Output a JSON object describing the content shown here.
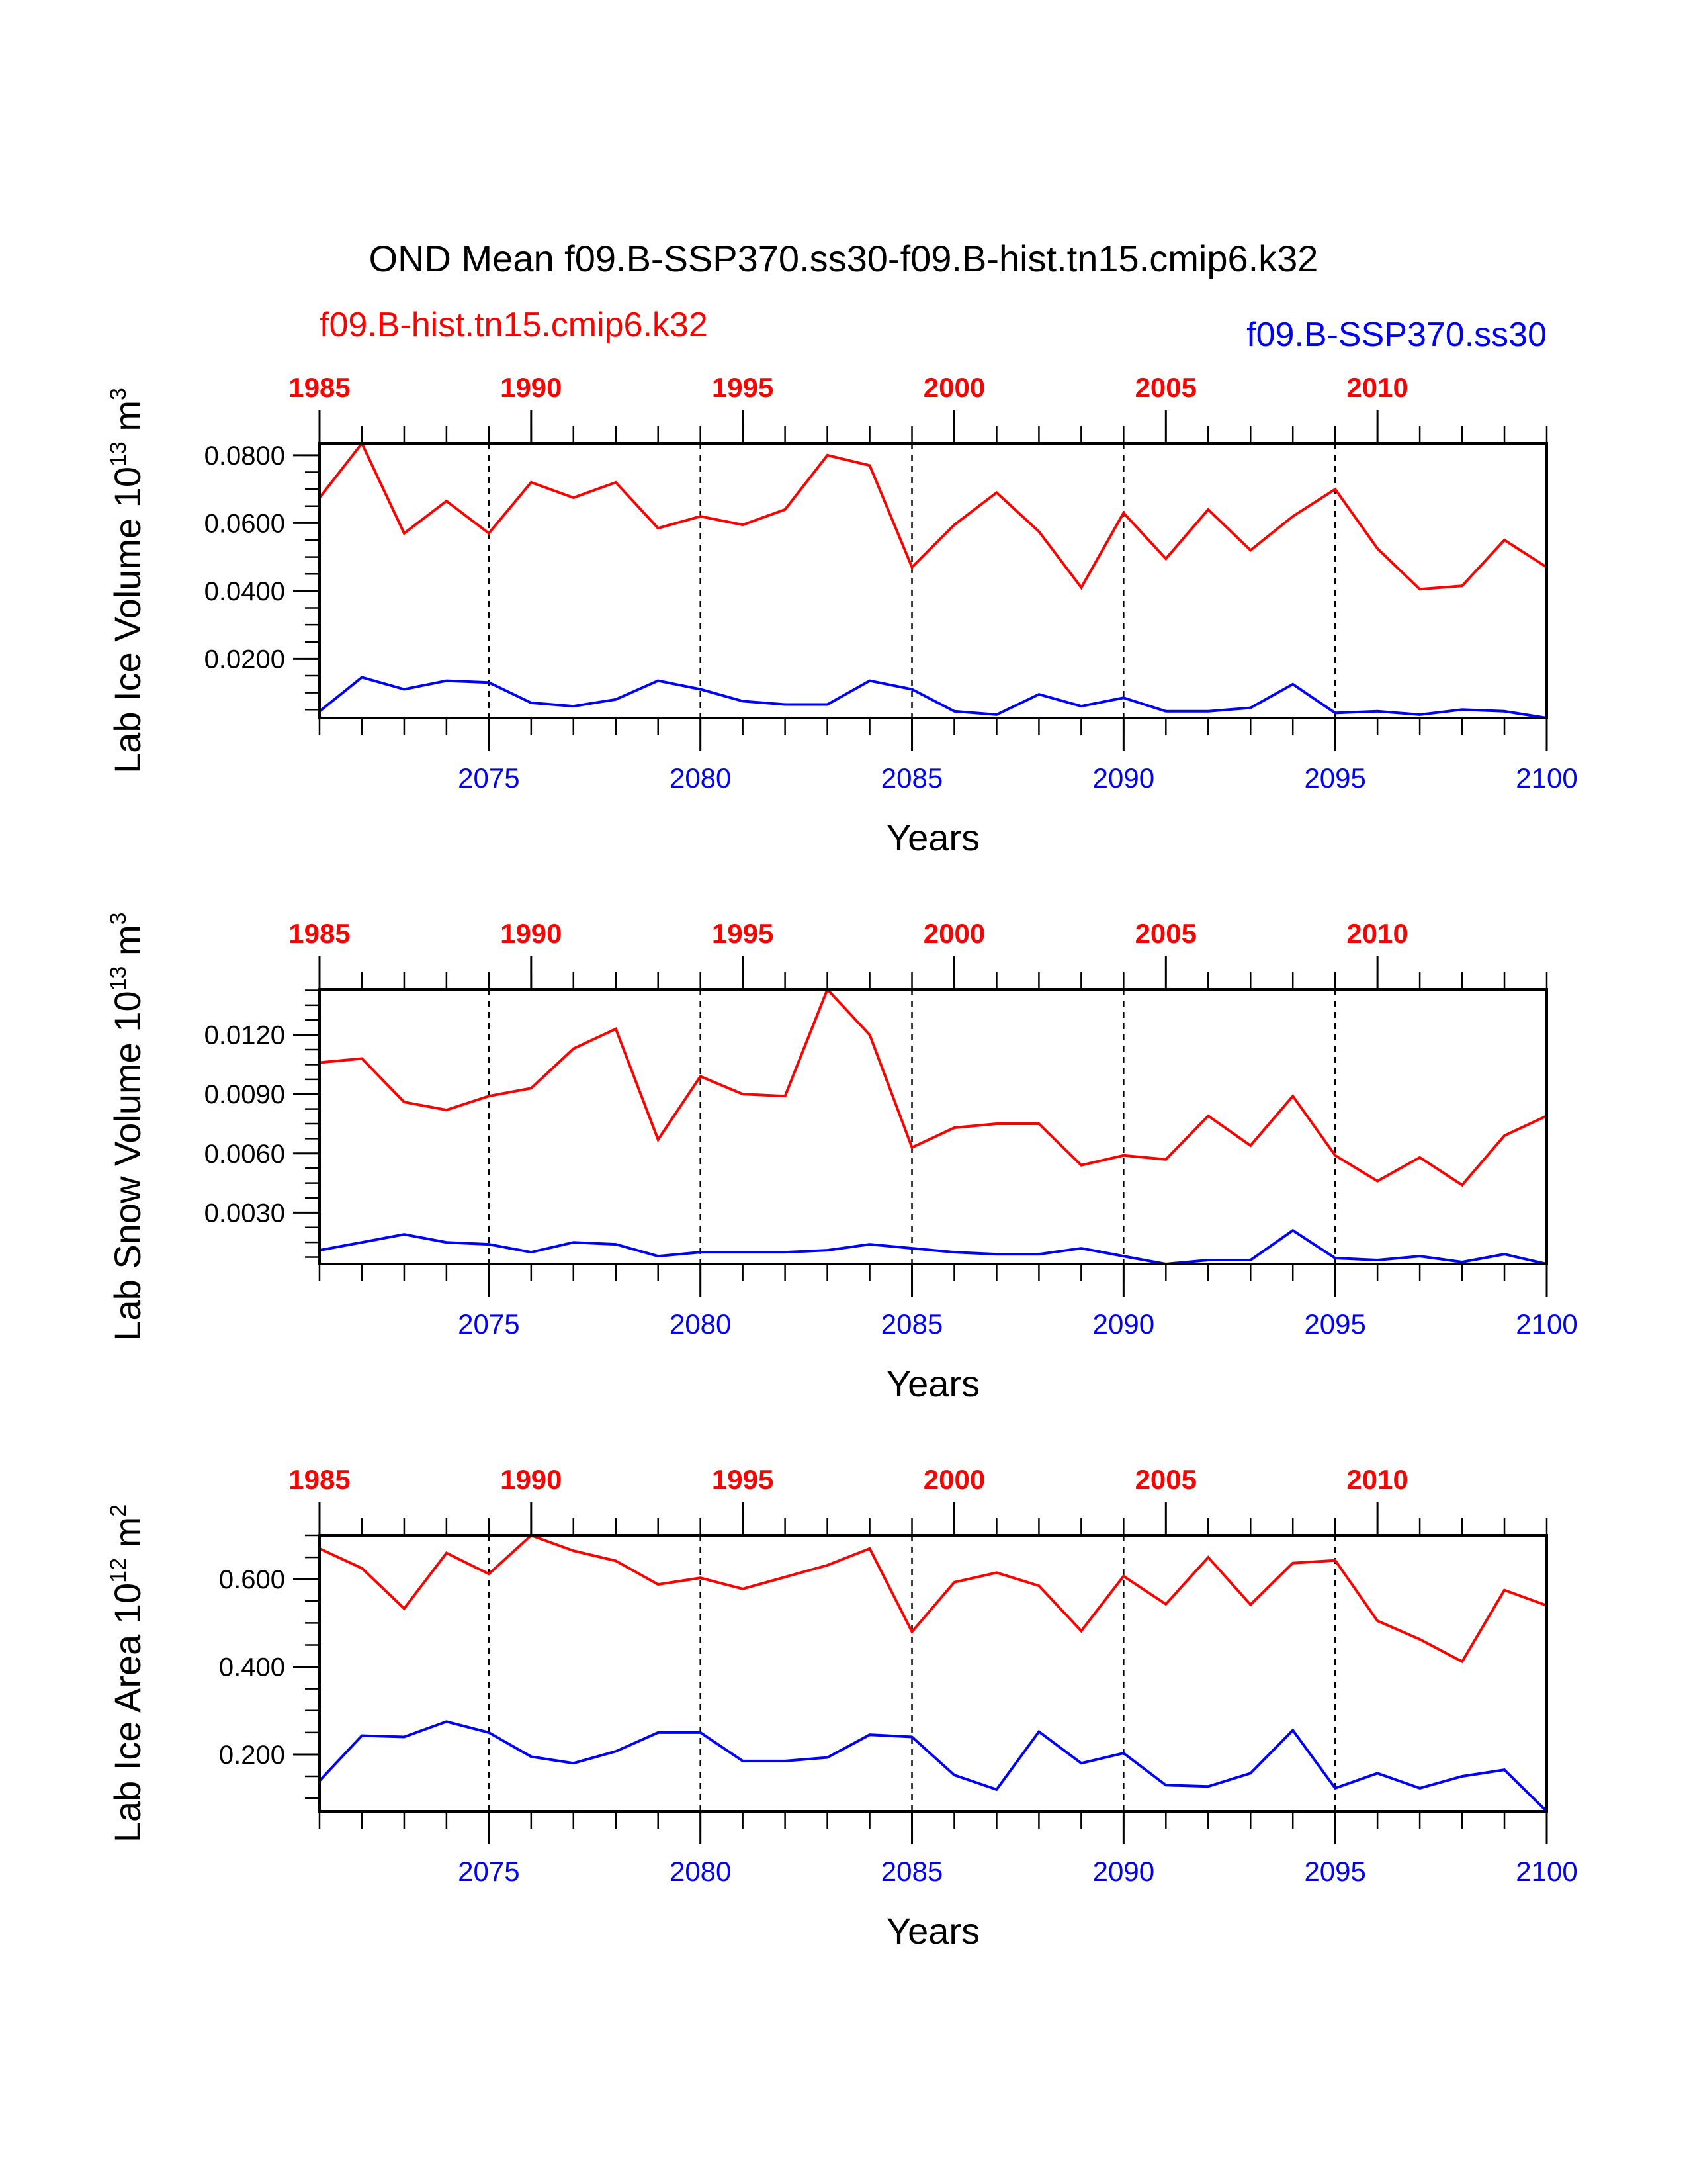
{
  "figure": {
    "title": "OND Mean f09.B-SSP370.ss30-f09.B-hist.tn15.cmip6.k32",
    "legend_hist": "f09.B-hist.tn15.cmip6.k32",
    "legend_ssp": "f09.B-SSP370.ss30",
    "colors": {
      "hist": "#ff0000",
      "ssp": "#0000ff",
      "axis": "#000000"
    }
  },
  "chart_data": [
    {
      "type": "line",
      "ylabel_main": "Lab Ice Volume 10",
      "ylabel_exp": "13",
      "ylabel_unit": " m",
      "ylabel_unit_exp": "3",
      "xlabel": "Years",
      "ylim": [
        0.0025,
        0.0835
      ],
      "yticks": [
        0.02,
        0.04,
        0.06,
        0.08
      ],
      "ytick_labels": [
        "0.0200",
        "0.0400",
        "0.0600",
        "0.0800"
      ],
      "yminor_step": 0.005,
      "x_bottom": {
        "ticks": [
          2075,
          2080,
          2085,
          2090,
          2095,
          2100
        ],
        "labels": [
          "2075",
          "2080",
          "2085",
          "2090",
          "2095",
          "2100"
        ]
      },
      "x_top": {
        "ticks": [
          1985,
          1990,
          1995,
          2000,
          2005,
          2010
        ],
        "labels": [
          "1985",
          "1990",
          "1995",
          "2000",
          "2005",
          "2010"
        ]
      },
      "xlim": [
        2071,
        2100
      ],
      "series": [
        {
          "name": "f09.B-hist.tn15.cmip6.k32",
          "color": "#ff0000",
          "x": [
            2071,
            2072,
            2073,
            2074,
            2075,
            2076,
            2077,
            2078,
            2079,
            2080,
            2081,
            2082,
            2083,
            2084,
            2085,
            2086,
            2087,
            2088,
            2089,
            2090,
            2091,
            2092,
            2093,
            2094,
            2095,
            2096,
            2097,
            2098,
            2099,
            2100
          ],
          "values": [
            0.0675,
            0.0835,
            0.057,
            0.0665,
            0.057,
            0.072,
            0.0675,
            0.072,
            0.0585,
            0.062,
            0.0595,
            0.064,
            0.08,
            0.077,
            0.047,
            0.0595,
            0.069,
            0.0575,
            0.041,
            0.063,
            0.0495,
            0.064,
            0.052,
            0.062,
            0.07,
            0.0525,
            0.0405,
            0.0415,
            0.055,
            0.047
          ]
        },
        {
          "name": "f09.B-SSP370.ss30",
          "color": "#0000ff",
          "x": [
            2071,
            2072,
            2073,
            2074,
            2075,
            2076,
            2077,
            2078,
            2079,
            2080,
            2081,
            2082,
            2083,
            2084,
            2085,
            2086,
            2087,
            2088,
            2089,
            2090,
            2091,
            2092,
            2093,
            2094,
            2095,
            2096,
            2097,
            2098,
            2099,
            2100
          ],
          "values": [
            0.0045,
            0.0145,
            0.011,
            0.0135,
            0.013,
            0.007,
            0.006,
            0.008,
            0.0135,
            0.011,
            0.0075,
            0.0065,
            0.0065,
            0.0135,
            0.011,
            0.0045,
            0.0035,
            0.0095,
            0.006,
            0.0085,
            0.0045,
            0.0045,
            0.0055,
            0.0125,
            0.004,
            0.0045,
            0.0035,
            0.005,
            0.0045,
            0.0025
          ]
        }
      ]
    },
    {
      "type": "line",
      "ylabel_main": "Lab Snow Volume 10",
      "ylabel_exp": "13",
      "ylabel_unit": " m",
      "ylabel_unit_exp": "3",
      "xlabel": "Years",
      "ylim": [
        0.0004,
        0.0143
      ],
      "yticks": [
        0.003,
        0.006,
        0.009,
        0.012
      ],
      "ytick_labels": [
        "0.0030",
        "0.0060",
        "0.0090",
        "0.0120"
      ],
      "yminor_step": 0.00075,
      "x_bottom": {
        "ticks": [
          2075,
          2080,
          2085,
          2090,
          2095,
          2100
        ],
        "labels": [
          "2075",
          "2080",
          "2085",
          "2090",
          "2095",
          "2100"
        ]
      },
      "x_top": {
        "ticks": [
          1985,
          1990,
          1995,
          2000,
          2005,
          2010
        ],
        "labels": [
          "1985",
          "1990",
          "1995",
          "2000",
          "2005",
          "2010"
        ]
      },
      "xlim": [
        2071,
        2100
      ],
      "series": [
        {
          "name": "f09.B-hist.tn15.cmip6.k32",
          "color": "#ff0000",
          "x": [
            2071,
            2072,
            2073,
            2074,
            2075,
            2076,
            2077,
            2078,
            2079,
            2080,
            2081,
            2082,
            2083,
            2084,
            2085,
            2086,
            2087,
            2088,
            2089,
            2090,
            2091,
            2092,
            2093,
            2094,
            2095,
            2096,
            2097,
            2098,
            2099,
            2100
          ],
          "values": [
            0.0106,
            0.0108,
            0.0086,
            0.0082,
            0.0089,
            0.0093,
            0.0113,
            0.0123,
            0.0067,
            0.0099,
            0.009,
            0.0089,
            0.0143,
            0.012,
            0.0063,
            0.0073,
            0.0075,
            0.0075,
            0.0054,
            0.0059,
            0.0057,
            0.0079,
            0.0064,
            0.0089,
            0.0059,
            0.0046,
            0.0058,
            0.0044,
            0.0069,
            0.0079
          ]
        },
        {
          "name": "f09.B-SSP370.ss30",
          "color": "#0000ff",
          "x": [
            2071,
            2072,
            2073,
            2074,
            2075,
            2076,
            2077,
            2078,
            2079,
            2080,
            2081,
            2082,
            2083,
            2084,
            2085,
            2086,
            2087,
            2088,
            2089,
            2090,
            2091,
            2092,
            2093,
            2094,
            2095,
            2096,
            2097,
            2098,
            2099,
            2100
          ],
          "values": [
            0.0011,
            0.0015,
            0.0019,
            0.0015,
            0.0014,
            0.001,
            0.0015,
            0.0014,
            0.0008,
            0.001,
            0.001,
            0.001,
            0.0011,
            0.0014,
            0.0012,
            0.001,
            0.0009,
            0.0009,
            0.0012,
            0.0008,
            0.0004,
            0.0006,
            0.0006,
            0.0021,
            0.0007,
            0.0006,
            0.0008,
            0.0005,
            0.0009,
            0.0004
          ]
        }
      ]
    },
    {
      "type": "line",
      "ylabel_main": "Lab Ice Area 10",
      "ylabel_exp": "12",
      "ylabel_unit": " m",
      "ylabel_unit_exp": "2",
      "xlabel": "Years",
      "ylim": [
        0.07,
        0.7
      ],
      "yticks": [
        0.2,
        0.4,
        0.6
      ],
      "ytick_labels": [
        "0.200",
        "0.400",
        "0.600"
      ],
      "yminor_step": 0.05,
      "x_bottom": {
        "ticks": [
          2075,
          2080,
          2085,
          2090,
          2095,
          2100
        ],
        "labels": [
          "2075",
          "2080",
          "2085",
          "2090",
          "2095",
          "2100"
        ]
      },
      "x_top": {
        "ticks": [
          1985,
          1990,
          1995,
          2000,
          2005,
          2010
        ],
        "labels": [
          "1985",
          "1990",
          "1995",
          "2000",
          "2005",
          "2010"
        ]
      },
      "xlim": [
        2071,
        2100
      ],
      "series": [
        {
          "name": "f09.B-hist.tn15.cmip6.k32",
          "color": "#ff0000",
          "x": [
            2071,
            2072,
            2073,
            2074,
            2075,
            2076,
            2077,
            2078,
            2079,
            2080,
            2081,
            2082,
            2083,
            2084,
            2085,
            2086,
            2087,
            2088,
            2089,
            2090,
            2091,
            2092,
            2093,
            2094,
            2095,
            2096,
            2097,
            2098,
            2099,
            2100
          ],
          "values": [
            0.67,
            0.625,
            0.533,
            0.66,
            0.612,
            0.7,
            0.665,
            0.642,
            0.588,
            0.603,
            0.578,
            0.605,
            0.632,
            0.67,
            0.48,
            0.593,
            0.615,
            0.585,
            0.482,
            0.607,
            0.543,
            0.65,
            0.542,
            0.637,
            0.643,
            0.505,
            0.463,
            0.412,
            0.575,
            0.54
          ]
        },
        {
          "name": "f09.B-SSP370.ss30",
          "color": "#0000ff",
          "x": [
            2071,
            2072,
            2073,
            2074,
            2075,
            2076,
            2077,
            2078,
            2079,
            2080,
            2081,
            2082,
            2083,
            2084,
            2085,
            2086,
            2087,
            2088,
            2089,
            2090,
            2091,
            2092,
            2093,
            2094,
            2095,
            2096,
            2097,
            2098,
            2099,
            2100
          ],
          "values": [
            0.14,
            0.243,
            0.24,
            0.275,
            0.25,
            0.195,
            0.18,
            0.207,
            0.25,
            0.25,
            0.185,
            0.185,
            0.193,
            0.245,
            0.24,
            0.153,
            0.12,
            0.252,
            0.18,
            0.203,
            0.13,
            0.127,
            0.157,
            0.255,
            0.123,
            0.157,
            0.123,
            0.15,
            0.165,
            0.07
          ]
        }
      ]
    }
  ]
}
